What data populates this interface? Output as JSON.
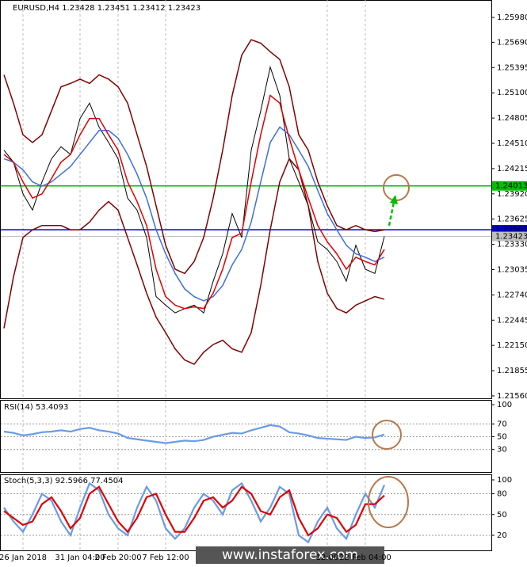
{
  "chart_data": [
    {
      "type": "line",
      "title": "EURUSD,H4  1.23428 1.23451 1.23412 1.23423",
      "categories": [
        null,
        null,
        "26 Jan 2018",
        null,
        null,
        null,
        null,
        null,
        "31 Jan 04:00",
        null,
        null,
        null,
        "2 Feb 20:00",
        null,
        null,
        null,
        null,
        "7 Feb 12:00",
        null,
        null,
        null,
        null,
        null,
        null,
        null,
        null,
        null,
        null,
        null,
        null,
        null,
        null,
        null,
        null,
        "12:00",
        null,
        null,
        null,
        "22 Feb 04:00",
        null,
        null
      ],
      "series": [
        {
          "color": "#000000",
          "values": [
            1.2443,
            1.2429,
            1.2392,
            1.2373,
            1.2406,
            1.2433,
            1.2447,
            1.2438,
            1.248,
            1.2498,
            1.247,
            1.2452,
            1.2433,
            1.2387,
            1.2373,
            1.2341,
            1.2272,
            1.2262,
            1.2253,
            1.2258,
            1.2262,
            1.2253,
            1.229,
            1.2322,
            1.2369,
            1.2341,
            1.2443,
            1.2489,
            1.254,
            1.2507,
            1.2433,
            1.2406,
            1.2378,
            1.2336,
            1.2327,
            1.2313,
            1.229,
            1.2332,
            1.2304,
            1.2299,
            1.23423
          ]
        },
        {
          "color": "#800000",
          "values": [
            1.2531,
            1.2498,
            1.2461,
            1.2452,
            1.2461,
            1.2489,
            1.2517,
            1.2521,
            1.2526,
            1.2521,
            1.2531,
            1.2526,
            1.2517,
            1.2498,
            1.2461,
            1.2424,
            1.2378,
            1.2332,
            1.2304,
            1.2299,
            1.2313,
            1.2341,
            1.2387,
            1.2443,
            1.2507,
            1.2554,
            1.2572,
            1.2568,
            1.2558,
            1.2549,
            1.2517,
            1.2461,
            1.2443,
            1.2406,
            1.2378,
            1.2355,
            1.235,
            1.2355,
            1.235,
            1.2348,
            1.235
          ]
        },
        {
          "color": "#800000",
          "values": [
            1.2235,
            1.2295,
            1.2341,
            1.235,
            1.2355,
            1.2355,
            1.2355,
            1.235,
            1.235,
            1.2359,
            1.2373,
            1.2383,
            1.2373,
            1.2341,
            1.2309,
            1.2276,
            1.2248,
            1.223,
            1.2211,
            1.2198,
            1.2193,
            1.2207,
            1.2216,
            1.2221,
            1.2211,
            1.2207,
            1.223,
            1.2285,
            1.235,
            1.2406,
            1.2433,
            1.242,
            1.2378,
            1.2313,
            1.2276,
            1.2258,
            1.2253,
            1.2262,
            1.2267,
            1.2272,
            1.2269
          ]
        },
        {
          "color": "#3b6fe0",
          "values": [
            1.2433,
            1.2429,
            1.242,
            1.2406,
            1.2401,
            1.2406,
            1.2415,
            1.2424,
            1.2438,
            1.2452,
            1.2466,
            1.2466,
            1.2457,
            1.2438,
            1.2415,
            1.2387,
            1.235,
            1.2322,
            1.2299,
            1.2281,
            1.2272,
            1.2267,
            1.2272,
            1.2285,
            1.2309,
            1.2327,
            1.2359,
            1.2406,
            1.2452,
            1.247,
            1.2461,
            1.2443,
            1.2424,
            1.2396,
            1.2369,
            1.235,
            1.2332,
            1.2322,
            1.2318,
            1.2313,
            1.2318
          ]
        },
        {
          "color": "#e00000",
          "values": [
            1.2438,
            1.2429,
            1.2406,
            1.2387,
            1.2392,
            1.241,
            1.2429,
            1.2438,
            1.2461,
            1.248,
            1.248,
            1.2461,
            1.2443,
            1.2406,
            1.2383,
            1.2355,
            1.2304,
            1.2272,
            1.2262,
            1.2258,
            1.226,
            1.2258,
            1.2276,
            1.2304,
            1.2341,
            1.2346,
            1.2406,
            1.2461,
            1.2507,
            1.2498,
            1.2457,
            1.242,
            1.2387,
            1.2355,
            1.2336,
            1.2322,
            1.2304,
            1.2318,
            1.2313,
            1.2309,
            1.2327
          ]
        }
      ],
      "ylim": [
        1.21532,
        1.26184
      ],
      "yticks": [
        {
          "value": 1.2598,
          "label": "1.25980"
        },
        {
          "value": 1.2569,
          "label": "1.25690"
        },
        1.25395,
        {
          "value": 1.251,
          "label": "1.25100"
        },
        1.24805,
        {
          "value": 1.2451,
          "label": "1.24510"
        },
        1.24215,
        {
          "value": 1.2392,
          "label": "1.23920"
        },
        1.23625,
        {
          "value": 1.2333,
          "label": "1.23330"
        },
        1.23035,
        {
          "value": 1.2274,
          "label": "1.22740"
        },
        1.22445,
        {
          "value": 1.2215,
          "label": "1.22150"
        },
        1.21855,
        {
          "value": 1.2156,
          "label": "1.21560"
        }
      ],
      "hlines": [
        {
          "value": 1.24013,
          "color": "#00c000"
        },
        {
          "value": 1.23501,
          "color": "#0000c8"
        },
        {
          "value": 1.23423,
          "color": "#c0c0c0"
        }
      ],
      "grid": true
    },
    {
      "type": "line",
      "title": "RSI(14) 53.4093",
      "series": [
        {
          "color": "#6a9be6",
          "values": [
            58,
            56,
            52,
            54,
            57,
            58,
            60,
            58,
            62,
            64,
            60,
            58,
            55,
            48,
            46,
            44,
            42,
            40,
            42,
            44,
            43,
            45,
            50,
            53,
            56,
            55,
            60,
            64,
            68,
            66,
            57,
            55,
            52,
            48,
            47,
            46,
            45,
            50,
            48,
            49,
            53.4093
          ]
        }
      ],
      "ylim": [
        0,
        100
      ],
      "yticks": [
        100,
        70,
        50,
        30
      ]
    },
    {
      "type": "line",
      "title": "Stoch(5,3,3) 92.5966 77.4504",
      "series": [
        {
          "color": "#6a9be6",
          "values": [
            60,
            40,
            25,
            50,
            80,
            70,
            40,
            20,
            60,
            95,
            85,
            50,
            30,
            20,
            60,
            90,
            70,
            30,
            15,
            30,
            60,
            80,
            70,
            50,
            85,
            95,
            70,
            40,
            60,
            90,
            80,
            20,
            10,
            40,
            60,
            30,
            15,
            50,
            80,
            60,
            92.5966
          ]
        },
        {
          "color": "#e00000",
          "values": [
            55,
            45,
            35,
            40,
            65,
            75,
            55,
            30,
            45,
            80,
            90,
            65,
            40,
            25,
            45,
            75,
            80,
            50,
            25,
            25,
            45,
            70,
            75,
            60,
            70,
            90,
            80,
            55,
            50,
            75,
            85,
            45,
            20,
            30,
            50,
            45,
            25,
            35,
            65,
            65,
            77.4504
          ]
        }
      ],
      "ylim": [
        0,
        100
      ],
      "yticks": [
        100,
        80,
        50,
        20
      ]
    }
  ],
  "watermark": "www.instaforex.com"
}
